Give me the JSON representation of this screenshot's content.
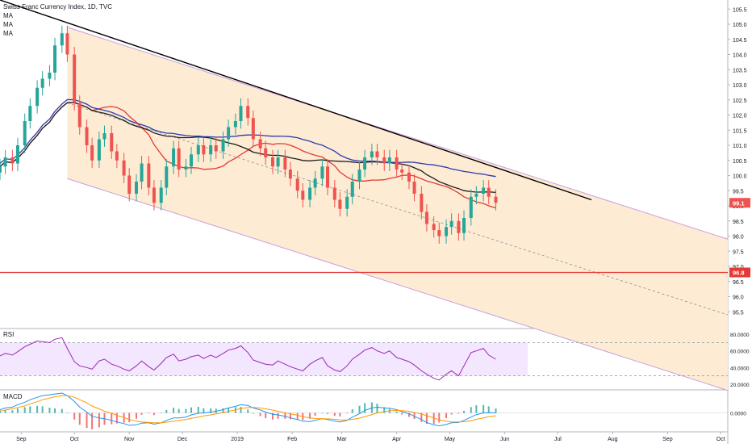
{
  "legend": {
    "title": "Swiss Franc Currency Index, 1D, TVC",
    "ma_labels": [
      "MA",
      "MA",
      "MA"
    ]
  },
  "panes": {
    "rsi_label": "RSI",
    "macd_label": "MACD"
  },
  "colors": {
    "up": "#26a69a",
    "down": "#ef5350",
    "ma_fast": "#e53935",
    "ma_mid": "#1c1c1c",
    "ma_slow": "#2c3bb0",
    "channel_fill": "#fdebd3",
    "channel_line": "#c8a0e0",
    "trend": "#000000",
    "hline": "#e53935",
    "rsi_line": "#9c27b0",
    "rsi_band": "#f3e6ff",
    "macd_line": "#2196f3",
    "signal_line": "#ff9800"
  },
  "chart_data": [
    {
      "type": "candlestick",
      "title": "Swiss Franc Currency Index, 1D, TVC",
      "x_ticks": [
        "Sep",
        "Oct",
        "Nov",
        "Dec",
        "2019",
        "Feb",
        "Mar",
        "Apr",
        "May",
        "Jun",
        "Jul",
        "Aug",
        "Sep",
        "Oct"
      ],
      "y_ticks": [
        105.5,
        105.0,
        104.5,
        104.0,
        103.5,
        103.0,
        102.5,
        102.0,
        101.5,
        101.0,
        100.5,
        100.0,
        99.5,
        99.0,
        98.5,
        98.0,
        97.5,
        97.0,
        96.5,
        96.0,
        95.5
      ],
      "ylim": [
        95.0,
        105.8
      ],
      "last_price_label": "99.1",
      "hline_label": "96.8",
      "hline_value": 96.8,
      "close_series": [
        {
          "d": "2018-08-20",
          "c": 100.3
        },
        {
          "d": "2018-08-23",
          "c": 100.6
        },
        {
          "d": "2018-08-27",
          "c": 100.4
        },
        {
          "d": "2018-08-30",
          "c": 101.0
        },
        {
          "d": "2018-09-03",
          "c": 101.8
        },
        {
          "d": "2018-09-06",
          "c": 102.3
        },
        {
          "d": "2018-09-10",
          "c": 102.9
        },
        {
          "d": "2018-09-13",
          "c": 103.2
        },
        {
          "d": "2018-09-17",
          "c": 103.4
        },
        {
          "d": "2018-09-20",
          "c": 104.3
        },
        {
          "d": "2018-09-24",
          "c": 104.7
        },
        {
          "d": "2018-09-27",
          "c": 104.0
        },
        {
          "d": "2018-10-01",
          "c": 102.4
        },
        {
          "d": "2018-10-04",
          "c": 101.6
        },
        {
          "d": "2018-10-08",
          "c": 101.0
        },
        {
          "d": "2018-10-11",
          "c": 100.5
        },
        {
          "d": "2018-10-15",
          "c": 101.2
        },
        {
          "d": "2018-10-18",
          "c": 101.4
        },
        {
          "d": "2018-10-22",
          "c": 100.8
        },
        {
          "d": "2018-10-25",
          "c": 100.5
        },
        {
          "d": "2018-10-29",
          "c": 100.0
        },
        {
          "d": "2018-11-01",
          "c": 99.4
        },
        {
          "d": "2018-11-05",
          "c": 99.8
        },
        {
          "d": "2018-11-08",
          "c": 100.4
        },
        {
          "d": "2018-11-12",
          "c": 99.6
        },
        {
          "d": "2018-11-15",
          "c": 99.1
        },
        {
          "d": "2018-11-19",
          "c": 99.6
        },
        {
          "d": "2018-11-22",
          "c": 100.3
        },
        {
          "d": "2018-11-26",
          "c": 100.9
        },
        {
          "d": "2018-11-29",
          "c": 100.2
        },
        {
          "d": "2018-12-03",
          "c": 100.3
        },
        {
          "d": "2018-12-06",
          "c": 100.7
        },
        {
          "d": "2018-12-10",
          "c": 101.0
        },
        {
          "d": "2018-12-13",
          "c": 100.7
        },
        {
          "d": "2018-12-17",
          "c": 101.0
        },
        {
          "d": "2018-12-20",
          "c": 100.8
        },
        {
          "d": "2018-12-24",
          "c": 101.2
        },
        {
          "d": "2018-12-27",
          "c": 101.6
        },
        {
          "d": "2018-12-31",
          "c": 101.8
        },
        {
          "d": "2019-01-03",
          "c": 102.3
        },
        {
          "d": "2019-01-07",
          "c": 101.9
        },
        {
          "d": "2019-01-10",
          "c": 101.2
        },
        {
          "d": "2019-01-14",
          "c": 100.9
        },
        {
          "d": "2019-01-17",
          "c": 100.6
        },
        {
          "d": "2019-01-21",
          "c": 100.3
        },
        {
          "d": "2019-01-24",
          "c": 100.6
        },
        {
          "d": "2019-01-28",
          "c": 100.2
        },
        {
          "d": "2019-01-31",
          "c": 99.9
        },
        {
          "d": "2019-02-04",
          "c": 99.5
        },
        {
          "d": "2019-02-07",
          "c": 99.2
        },
        {
          "d": "2019-02-11",
          "c": 99.6
        },
        {
          "d": "2019-02-14",
          "c": 99.9
        },
        {
          "d": "2019-02-18",
          "c": 100.3
        },
        {
          "d": "2019-02-21",
          "c": 99.6
        },
        {
          "d": "2019-02-25",
          "c": 99.2
        },
        {
          "d": "2019-02-28",
          "c": 98.9
        },
        {
          "d": "2019-03-04",
          "c": 99.3
        },
        {
          "d": "2019-03-07",
          "c": 99.8
        },
        {
          "d": "2019-03-11",
          "c": 100.2
        },
        {
          "d": "2019-03-14",
          "c": 100.6
        },
        {
          "d": "2019-03-18",
          "c": 100.8
        },
        {
          "d": "2019-03-21",
          "c": 100.6
        },
        {
          "d": "2019-03-25",
          "c": 100.4
        },
        {
          "d": "2019-03-28",
          "c": 100.6
        },
        {
          "d": "2019-04-01",
          "c": 100.2
        },
        {
          "d": "2019-04-04",
          "c": 100.1
        },
        {
          "d": "2019-04-08",
          "c": 99.8
        },
        {
          "d": "2019-04-11",
          "c": 99.4
        },
        {
          "d": "2019-04-15",
          "c": 98.8
        },
        {
          "d": "2019-04-18",
          "c": 98.4
        },
        {
          "d": "2019-04-22",
          "c": 98.2
        },
        {
          "d": "2019-04-25",
          "c": 98.0
        },
        {
          "d": "2019-04-29",
          "c": 98.3
        },
        {
          "d": "2019-05-02",
          "c": 98.5
        },
        {
          "d": "2019-05-06",
          "c": 98.1
        },
        {
          "d": "2019-05-09",
          "c": 98.6
        },
        {
          "d": "2019-05-13",
          "c": 99.3
        },
        {
          "d": "2019-05-16",
          "c": 99.4
        },
        {
          "d": "2019-05-20",
          "c": 99.6
        },
        {
          "d": "2019-05-23",
          "c": 99.3
        },
        {
          "d": "2019-05-27",
          "c": 99.1
        }
      ]
    },
    {
      "type": "line",
      "title": "RSI",
      "y_ticks": [
        "80.0000",
        "60.0000",
        "40.0000",
        "20.0000"
      ],
      "ylim": [
        15,
        85
      ],
      "band": [
        30,
        70
      ],
      "values": [
        54,
        57,
        55,
        59,
        65,
        68,
        72,
        71,
        70,
        74,
        76,
        63,
        47,
        42,
        40,
        38,
        48,
        50,
        44,
        42,
        38,
        36,
        42,
        48,
        41,
        37,
        45,
        52,
        56,
        48,
        50,
        53,
        55,
        51,
        55,
        52,
        57,
        61,
        63,
        66,
        58,
        49,
        46,
        44,
        43,
        48,
        44,
        41,
        38,
        36,
        44,
        48,
        52,
        42,
        37,
        35,
        42,
        50,
        56,
        61,
        64,
        60,
        57,
        60,
        52,
        50,
        47,
        43,
        36,
        32,
        27,
        25,
        32,
        36,
        30,
        42,
        58,
        60,
        63,
        55,
        50
      ]
    },
    {
      "type": "line",
      "title": "MACD",
      "y_ticks": [
        "0.0000"
      ],
      "ylim": [
        -1.0,
        1.3
      ],
      "macd": [
        0.2,
        0.3,
        0.35,
        0.5,
        0.65,
        0.8,
        0.95,
        1.05,
        1.1,
        1.15,
        1.2,
        1.05,
        0.7,
        0.35,
        0.05,
        -0.2,
        -0.3,
        -0.35,
        -0.45,
        -0.55,
        -0.65,
        -0.75,
        -0.72,
        -0.62,
        -0.6,
        -0.68,
        -0.6,
        -0.45,
        -0.3,
        -0.3,
        -0.25,
        -0.12,
        -0.02,
        0.0,
        0.05,
        0.1,
        0.2,
        0.3,
        0.4,
        0.5,
        0.45,
        0.3,
        0.18,
        0.05,
        -0.08,
        -0.12,
        -0.2,
        -0.3,
        -0.4,
        -0.5,
        -0.52,
        -0.45,
        -0.35,
        -0.4,
        -0.5,
        -0.55,
        -0.45,
        -0.25,
        -0.05,
        0.15,
        0.3,
        0.35,
        0.3,
        0.28,
        0.2,
        0.08,
        -0.05,
        -0.2,
        -0.4,
        -0.58,
        -0.72,
        -0.78,
        -0.7,
        -0.6,
        -0.58,
        -0.45,
        -0.25,
        -0.1,
        0.0,
        0.02,
        0.0
      ],
      "signal": [
        0.1,
        0.18,
        0.25,
        0.33,
        0.43,
        0.55,
        0.68,
        0.8,
        0.9,
        0.98,
        1.05,
        1.05,
        0.95,
        0.8,
        0.62,
        0.42,
        0.25,
        0.1,
        -0.02,
        -0.15,
        -0.28,
        -0.4,
        -0.5,
        -0.55,
        -0.58,
        -0.6,
        -0.6,
        -0.56,
        -0.5,
        -0.45,
        -0.4,
        -0.33,
        -0.25,
        -0.18,
        -0.12,
        -0.06,
        0.02,
        0.1,
        0.18,
        0.27,
        0.32,
        0.33,
        0.3,
        0.25,
        0.17,
        0.1,
        0.02,
        -0.06,
        -0.14,
        -0.23,
        -0.3,
        -0.34,
        -0.35,
        -0.36,
        -0.39,
        -0.42,
        -0.43,
        -0.39,
        -0.32,
        -0.22,
        -0.1,
        0.0,
        0.08,
        0.13,
        0.15,
        0.14,
        0.1,
        0.03,
        -0.06,
        -0.17,
        -0.3,
        -0.42,
        -0.5,
        -0.54,
        -0.55,
        -0.53,
        -0.47,
        -0.39,
        -0.3,
        -0.23,
        -0.17
      ]
    }
  ]
}
